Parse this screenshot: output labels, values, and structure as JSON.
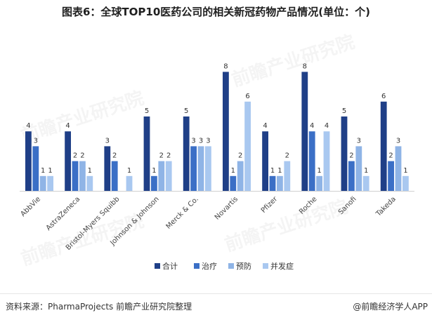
{
  "title": "图表6：全球TOP10医药公司的相关新冠药物产品情况(单位：个)",
  "footer": {
    "source": "资料来源：PharmaProjects 前瞻产业研究院整理",
    "brand": "@前瞻经济学人APP"
  },
  "watermark": "前瞻产业研究院",
  "colors": {
    "合计": "#1f3f87",
    "治疗": "#3b6fc6",
    "预防": "#8fb4e6",
    "并发症": "#a9c8f0"
  },
  "chart_data": {
    "type": "bar",
    "title": "图表6：全球TOP10医药公司的相关新冠药物产品情况(单位：个)",
    "xlabel": "",
    "ylabel": "",
    "ylim": [
      0,
      8
    ],
    "grid": false,
    "legend_position": "bottom",
    "categories": [
      "AbbVie",
      "AstraZeneca",
      "Bristol-Myers Squibb",
      "Johnson & Johnson",
      "Merck & Co.",
      "Novartis",
      "Pfizer",
      "Roche",
      "Sanofi",
      "Takeda"
    ],
    "series": [
      {
        "name": "合计",
        "values": [
          4,
          4,
          3,
          5,
          5,
          8,
          4,
          8,
          5,
          6
        ]
      },
      {
        "name": "治疗",
        "values": [
          3,
          2,
          2,
          1,
          3,
          1,
          1,
          4,
          2,
          2
        ]
      },
      {
        "name": "预防",
        "values": [
          1,
          2,
          0,
          2,
          3,
          2,
          1,
          1,
          3,
          3
        ]
      },
      {
        "name": "并发症",
        "values": [
          1,
          1,
          1,
          2,
          3,
          6,
          2,
          4,
          1,
          1
        ]
      }
    ]
  }
}
